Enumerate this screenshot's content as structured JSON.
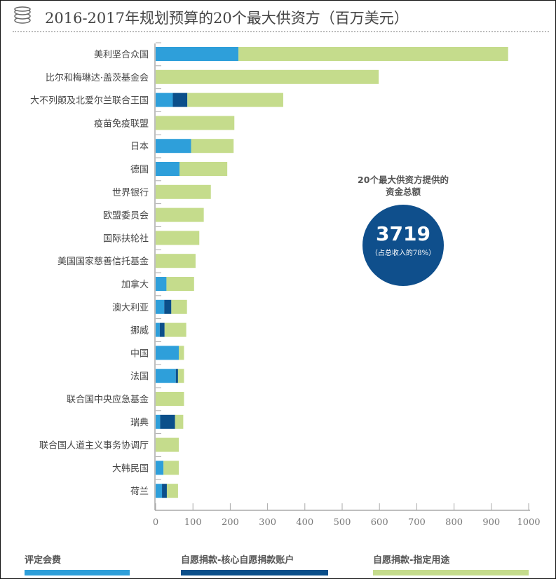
{
  "header": {
    "title": "2016-2017年规划预算的20个最大供资方（百万美元）",
    "icon": "coins-icon"
  },
  "callout": {
    "heading_line1": "20个最大供资方提供的",
    "heading_line2": "资金总额",
    "total": "3719",
    "share": "（占总收入的78%）",
    "color": "#0f4f8c"
  },
  "chart_data": {
    "type": "bar",
    "orientation": "horizontal",
    "stacked": true,
    "title": "2016-2017年规划预算的20个最大供资方（百万美元）",
    "xlim": [
      0,
      1000
    ],
    "xticks": [
      "0",
      "100",
      "200",
      "300",
      "400",
      "500",
      "600",
      "700",
      "800",
      "900",
      "1000"
    ],
    "grid": false,
    "legend_position": "bottom",
    "categories": [
      "美利坚合众国",
      "比尔和梅琳达·盖茨基金会",
      "大不列颠及北爱尔兰联合王国",
      "疫苗免疫联盟",
      "日本",
      "德国",
      "世界银行",
      "欧盟委员会",
      "国际扶轮社",
      "美国国家慈善信托基金",
      "加拿大",
      "澳大利亚",
      "挪威",
      "中国",
      "法国",
      "联合国中央应急基金",
      "瑞典",
      "联合国人道主义事务协调厅",
      "大韩民国",
      "荷兰"
    ],
    "series": [
      {
        "name": "评定会费",
        "color": "#2e9fda",
        "values": [
          222,
          0,
          46,
          0,
          95,
          64,
          0,
          0,
          0,
          0,
          29,
          23,
          11,
          62,
          54,
          0,
          12,
          0,
          21,
          17
        ]
      },
      {
        "name": "自愿捐款-核心自愿捐款账户",
        "color": "#0b4f8a",
        "values": [
          0,
          0,
          39,
          0,
          0,
          0,
          0,
          0,
          0,
          0,
          0,
          19,
          13,
          0,
          6,
          0,
          40,
          0,
          0,
          13
        ]
      },
      {
        "name": "自愿捐款-指定用途",
        "color": "#c5dc8c",
        "values": [
          723,
          598,
          257,
          211,
          114,
          128,
          148,
          129,
          117,
          107,
          74,
          42,
          58,
          14,
          16,
          76,
          22,
          62,
          41,
          30
        ]
      }
    ]
  }
}
